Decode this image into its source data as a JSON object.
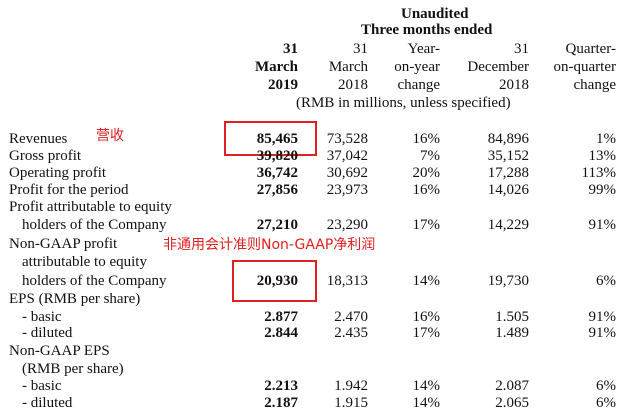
{
  "header": {
    "unaudited": "Unaudited",
    "period": "Three months ended",
    "col1": [
      "31",
      "March",
      "2019"
    ],
    "col2": [
      "31",
      "March",
      "2018"
    ],
    "col3": [
      "Year-",
      "on-year",
      "change"
    ],
    "col4": [
      "31",
      "December",
      "2018"
    ],
    "col5": [
      "Quarter-",
      "on-quarter",
      "change"
    ],
    "units": "(RMB in millions, unless specified)"
  },
  "annotations": {
    "revenues_cn": "营收",
    "nongaap_cn": "非通用会计准则Non-GAAP净利润"
  },
  "rows": [
    {
      "label": "Revenues",
      "v2019": "85,465",
      "v2018": "73,528",
      "yoy": "16%",
      "dec2018": "84,896",
      "qoq": "1%"
    },
    {
      "label": "Gross profit",
      "v2019": "39,820",
      "v2018": "37,042",
      "yoy": "7%",
      "dec2018": "35,152",
      "qoq": "13%"
    },
    {
      "label": "Operating profit",
      "v2019": "36,742",
      "v2018": "30,692",
      "yoy": "20%",
      "dec2018": "17,288",
      "qoq": "113%"
    },
    {
      "label": "Profit for the period",
      "v2019": "27,856",
      "v2018": "23,973",
      "yoy": "16%",
      "dec2018": "14,026",
      "qoq": "99%"
    },
    {
      "label": "Profit attributable to equity",
      "label2": "holders of the Company",
      "v2019": "27,210",
      "v2018": "23,290",
      "yoy": "17%",
      "dec2018": "14,229",
      "qoq": "91%"
    },
    {
      "label": "Non-GAAP profit",
      "label2": "attributable to equity",
      "label3": "holders of the Company",
      "v2019": "20,930",
      "v2018": "18,313",
      "yoy": "14%",
      "dec2018": "19,730",
      "qoq": "6%"
    },
    {
      "label": "EPS (RMB per share)"
    },
    {
      "label": "- basic",
      "v2019": "2.877",
      "v2018": "2.470",
      "yoy": "16%",
      "dec2018": "1.505",
      "qoq": "91%"
    },
    {
      "label": "- diluted",
      "v2019": "2.844",
      "v2018": "2.435",
      "yoy": "17%",
      "dec2018": "1.489",
      "qoq": "91%"
    },
    {
      "label": "Non-GAAP EPS",
      "label2": "(RMB per share)"
    },
    {
      "label": "- basic",
      "v2019": "2.213",
      "v2018": "1.942",
      "yoy": "14%",
      "dec2018": "2.087",
      "qoq": "6%"
    },
    {
      "label": "- diluted",
      "v2019": "2.187",
      "v2018": "1.915",
      "yoy": "14%",
      "dec2018": "2.065",
      "qoq": "6%"
    }
  ],
  "colors": {
    "annotation": "#e02020"
  }
}
